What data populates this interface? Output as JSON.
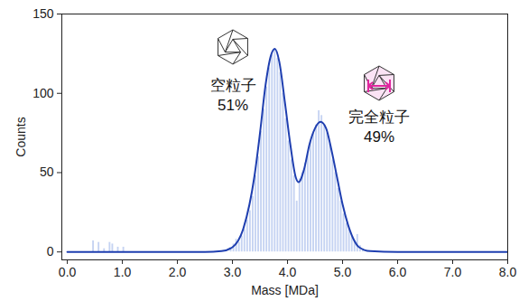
{
  "chart_data": {
    "type": "histogram",
    "x_label": "Mass [MDa]",
    "y_label": "Counts",
    "xlim": [
      -0.1,
      8.0
    ],
    "ylim": [
      -5,
      150
    ],
    "xticks": [
      {
        "value": 0,
        "label": "0.0"
      },
      {
        "value": 1,
        "label": "1.0"
      },
      {
        "value": 2,
        "label": "2.0"
      },
      {
        "value": 3,
        "label": "3.0"
      },
      {
        "value": 4,
        "label": "4.0"
      },
      {
        "value": 5,
        "label": "5.0"
      },
      {
        "value": 6,
        "label": "6.0"
      },
      {
        "value": 7,
        "label": "7.0"
      },
      {
        "value": 8,
        "label": "8.0"
      }
    ],
    "yticks": [
      0,
      50,
      100,
      150
    ],
    "grid": false,
    "color": "#c5d3f2",
    "bins": [
      0.4,
      0.45,
      0.5,
      0.55,
      0.6,
      0.65,
      0.7,
      0.75,
      0.8,
      0.85,
      0.9,
      0.95,
      1.0,
      1.05,
      1.1,
      1.15,
      1.2,
      1.25,
      1.3,
      1.35,
      1.4,
      1.45,
      1.5,
      1.55,
      1.6,
      1.65,
      1.7,
      1.75,
      1.8,
      1.85,
      1.9,
      1.95,
      2.0,
      2.05,
      2.1,
      2.15,
      2.2,
      2.25,
      2.3,
      2.35,
      2.4,
      2.45,
      2.5,
      2.55,
      2.6,
      2.65,
      2.7,
      2.75,
      2.8,
      2.85,
      2.9,
      2.95,
      3.0,
      3.05,
      3.1,
      3.15,
      3.2,
      3.25,
      3.3,
      3.35,
      3.4,
      3.45,
      3.5,
      3.55,
      3.6,
      3.65,
      3.7,
      3.75,
      3.8,
      3.85,
      3.9,
      3.95,
      4.0,
      4.05,
      4.1,
      4.15,
      4.2,
      4.25,
      4.3,
      4.35,
      4.4,
      4.45,
      4.5,
      4.55,
      4.6,
      4.65,
      4.7,
      4.75,
      4.8,
      4.85,
      4.9,
      4.95,
      5.0,
      5.05,
      5.1,
      5.15,
      5.2,
      5.25,
      5.3,
      5.35,
      5.4
    ],
    "counts": [
      0,
      7,
      0,
      6,
      0,
      2,
      0,
      6,
      5,
      0,
      3,
      0,
      3,
      0,
      0,
      0,
      0,
      0,
      0,
      0,
      0,
      0,
      0,
      0,
      0,
      0,
      0,
      0,
      0,
      0,
      0,
      0,
      0,
      0,
      0,
      0,
      0,
      0,
      0,
      0,
      0,
      0,
      0,
      0,
      0,
      0,
      0,
      0,
      0,
      0,
      0,
      3,
      5,
      8,
      6,
      10,
      14,
      20,
      26,
      35,
      48,
      60,
      76,
      90,
      104,
      116,
      124,
      128,
      122,
      113,
      100,
      84,
      70,
      58,
      48,
      32,
      46,
      50,
      56,
      62,
      70,
      75,
      80,
      89,
      86,
      80,
      75,
      68,
      58,
      50,
      40,
      32,
      24,
      18,
      14,
      10,
      7,
      11,
      4,
      2
    ],
    "fit": {
      "type": "line",
      "color": "#1f3fb0",
      "x": [
        0,
        2.5,
        2.8,
        3.0,
        3.2,
        3.4,
        3.5,
        3.6,
        3.7,
        3.77,
        3.85,
        3.95,
        4.05,
        4.15,
        4.2,
        4.3,
        4.4,
        4.5,
        4.6,
        4.7,
        4.8,
        4.9,
        5.0,
        5.1,
        5.2,
        5.3,
        5.5,
        6.0,
        8.0
      ],
      "values": [
        0,
        0,
        0.5,
        3,
        15,
        48,
        75,
        105,
        124,
        128,
        120,
        95,
        68,
        47,
        44,
        52,
        68,
        78,
        82,
        78,
        64,
        47,
        30,
        17,
        8,
        3,
        0.5,
        0,
        0
      ]
    },
    "annotations": [
      "空粒子\n51%",
      "完全粒子\n49%"
    ]
  }
}
